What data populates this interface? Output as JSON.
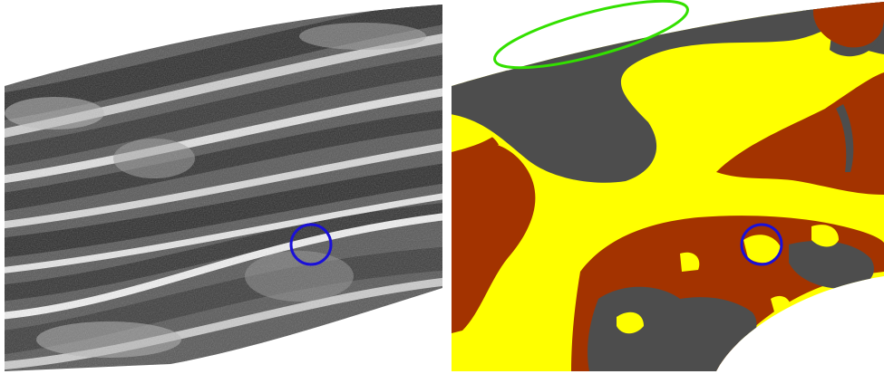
{
  "figure": {
    "panels": [
      {
        "id": "sonar-mosaic",
        "kind": "grayscale side-scan sonar mosaic of seabed sand ridges"
      },
      {
        "id": "segmentation-map",
        "kind": "seabed class segmentation map"
      }
    ],
    "colors": {
      "background": "#ffffff",
      "sonar_dark": "#2a2a2a",
      "sonar_mid": "#7a7a7a",
      "sonar_light": "#e8e8e8",
      "class_gray": "#4d4d4d",
      "class_yellow": "#ffff00",
      "class_brown": "#a33300",
      "marker_circle": "#1a10d8",
      "marker_ellipse": "#33e000"
    },
    "annotations": [
      {
        "name": "blue-circle-sonar",
        "shape": "circle",
        "color": "blue"
      },
      {
        "name": "blue-circle-segmentation",
        "shape": "circle",
        "color": "blue"
      },
      {
        "name": "green-ellipse-segmentation",
        "shape": "ellipse",
        "color": "green"
      }
    ]
  }
}
